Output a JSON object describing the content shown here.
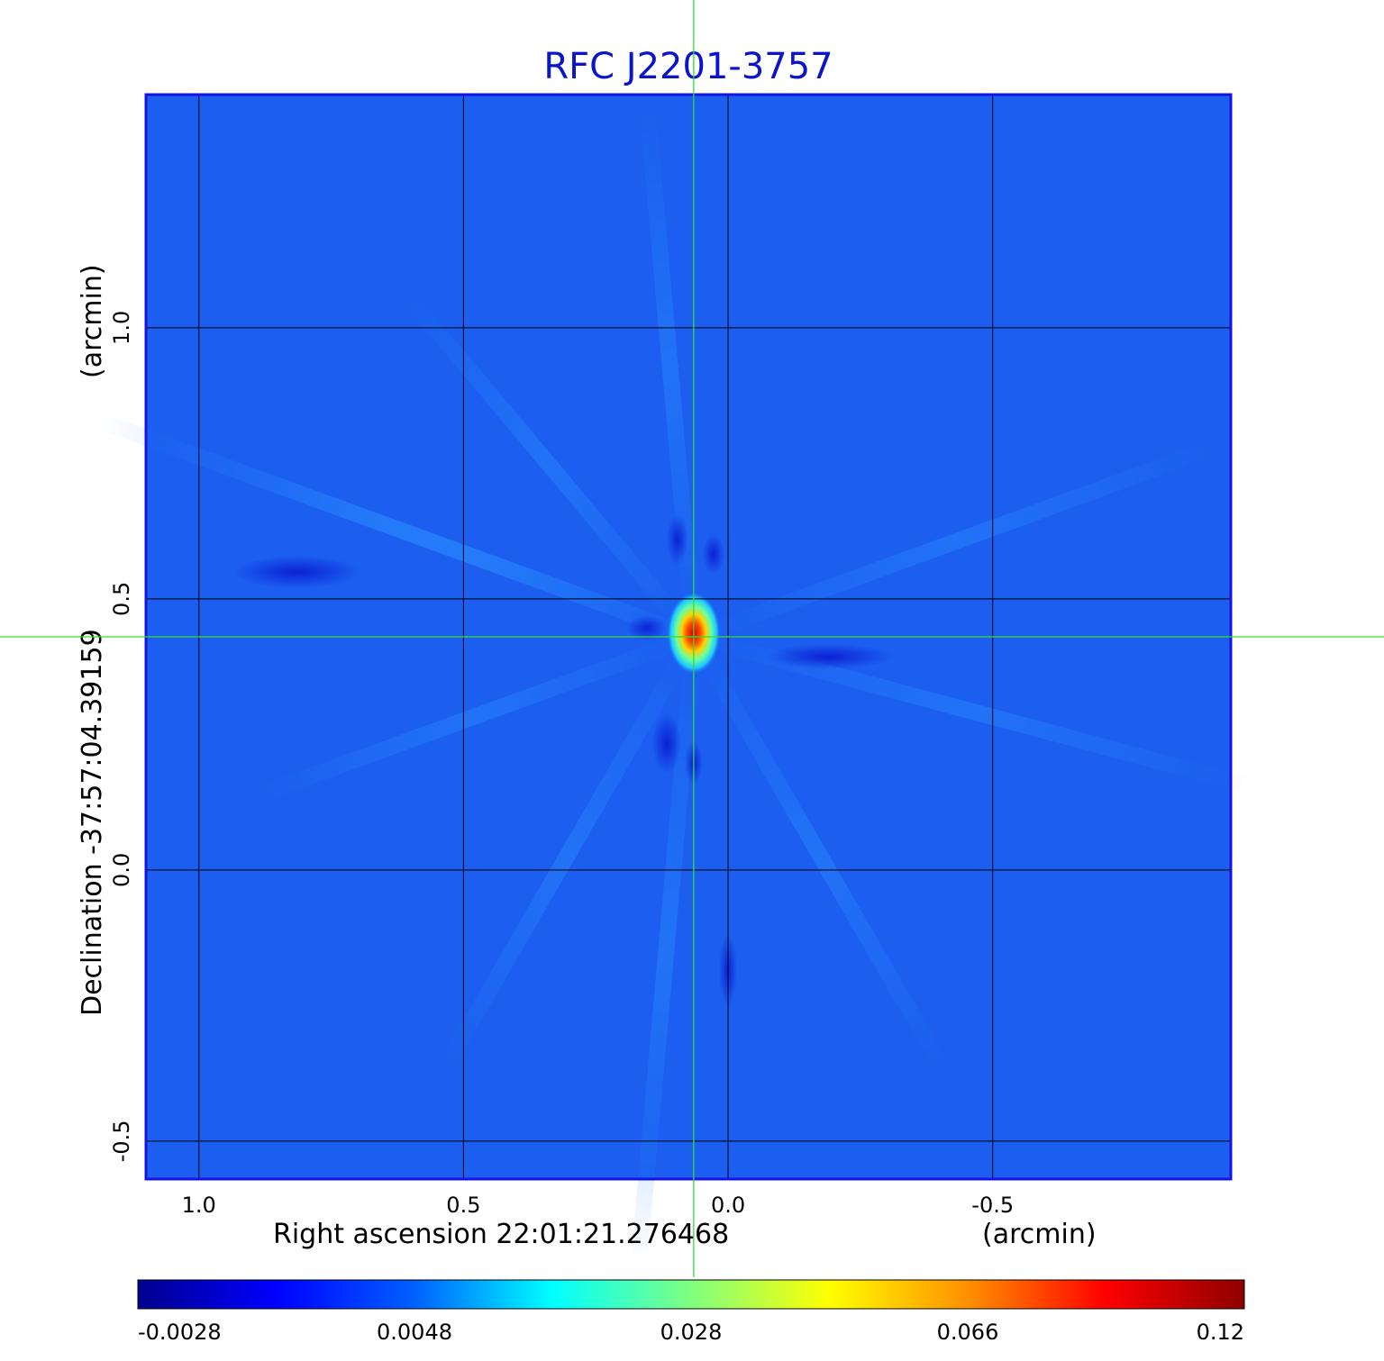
{
  "chart_data": {
    "type": "heatmap",
    "title": "RFC J2201-3757",
    "xlabel": "Right ascension  22:01:21.276468",
    "xlabel_unit": "(arcmin)",
    "ylabel": "Declination  -37:57:04.39159",
    "ylabel_unit": "(arcmin)",
    "x_ticks": [
      1.0,
      0.5,
      0.0,
      -0.5
    ],
    "x_tick_labels": [
      "1.0",
      "0.5",
      "0.0",
      "-0.5"
    ],
    "y_ticks": [
      1.0,
      0.5,
      0.0,
      -0.5
    ],
    "y_tick_labels": [
      "1.0",
      "0.5",
      "0.0",
      "-0.5"
    ],
    "xlim": [
      1.1,
      -0.95
    ],
    "ylim": [
      -0.57,
      1.43
    ],
    "grid": true,
    "colormap": "jet",
    "source": {
      "x": 0.065,
      "y": 0.43,
      "peak": 0.12
    },
    "crosshair": {
      "x": 0.065,
      "y": 0.43,
      "color": "#33dd33"
    },
    "colorbar": {
      "tick_labels": [
        "-0.0028",
        "0.0048",
        "0.028",
        "0.066",
        "0.12"
      ],
      "min": -0.0028,
      "max": 0.12
    }
  }
}
